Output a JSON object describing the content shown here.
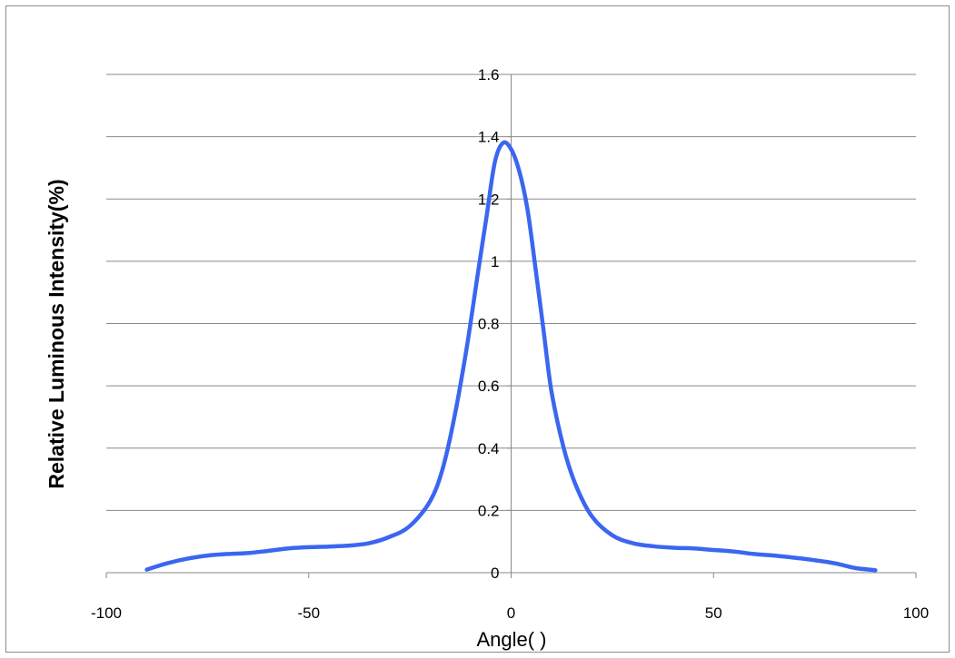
{
  "chart_data": {
    "type": "line",
    "title": "",
    "xlabel": "Angle( )",
    "ylabel": "Relative Luminous Intensity(%)",
    "xlim": [
      -100,
      100
    ],
    "ylim": [
      0,
      1.6
    ],
    "x_ticks": [
      -100,
      -50,
      0,
      50,
      100
    ],
    "y_ticks": [
      0,
      0.2,
      0.4,
      0.6,
      0.8,
      1,
      1.2,
      1.4,
      1.6
    ],
    "x_tick_labels": [
      "-100",
      "-50",
      "0",
      "50",
      "100"
    ],
    "y_tick_labels": [
      "0",
      "0.2",
      "0.4",
      "0.6",
      "0.8",
      "1",
      "1.2",
      "1.4",
      "1.6"
    ],
    "grid": "horizontal",
    "legend": "none",
    "series": [
      {
        "color": "#3b66f0",
        "points": [
          [
            -90,
            0.01
          ],
          [
            -85,
            0.03
          ],
          [
            -80,
            0.045
          ],
          [
            -75,
            0.055
          ],
          [
            -70,
            0.06
          ],
          [
            -65,
            0.063
          ],
          [
            -60,
            0.07
          ],
          [
            -55,
            0.078
          ],
          [
            -50,
            0.082
          ],
          [
            -45,
            0.084
          ],
          [
            -40,
            0.087
          ],
          [
            -35,
            0.095
          ],
          [
            -30,
            0.115
          ],
          [
            -25,
            0.15
          ],
          [
            -20,
            0.23
          ],
          [
            -17,
            0.33
          ],
          [
            -14,
            0.5
          ],
          [
            -11,
            0.72
          ],
          [
            -8,
            0.98
          ],
          [
            -6,
            1.15
          ],
          [
            -4,
            1.32
          ],
          [
            -2,
            1.38
          ],
          [
            0,
            1.36
          ],
          [
            2,
            1.29
          ],
          [
            4,
            1.17
          ],
          [
            6,
            0.98
          ],
          [
            8,
            0.78
          ],
          [
            10,
            0.58
          ],
          [
            13,
            0.4
          ],
          [
            16,
            0.28
          ],
          [
            20,
            0.18
          ],
          [
            25,
            0.12
          ],
          [
            30,
            0.095
          ],
          [
            35,
            0.085
          ],
          [
            40,
            0.08
          ],
          [
            45,
            0.078
          ],
          [
            50,
            0.073
          ],
          [
            55,
            0.068
          ],
          [
            60,
            0.06
          ],
          [
            65,
            0.055
          ],
          [
            70,
            0.048
          ],
          [
            75,
            0.04
          ],
          [
            80,
            0.03
          ],
          [
            85,
            0.015
          ],
          [
            90,
            0.008
          ]
        ]
      }
    ]
  }
}
